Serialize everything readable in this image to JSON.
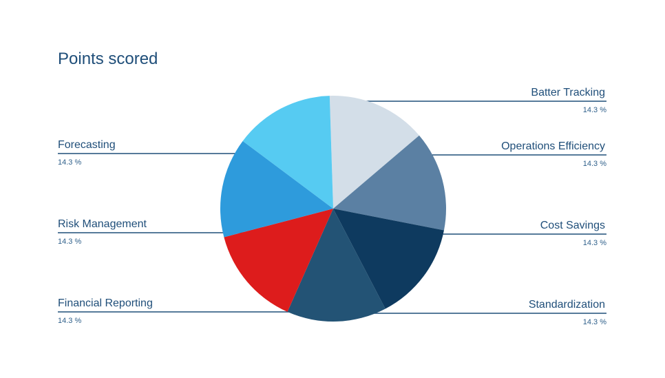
{
  "chart_data": {
    "type": "pie",
    "title": "Points scored",
    "slices": [
      {
        "label": "Batter Tracking",
        "value": 14.3,
        "display": "14.3 %",
        "color": "#d3dee8"
      },
      {
        "label": "Operations Efficiency",
        "value": 14.3,
        "display": "14.3 %",
        "color": "#5b80a3"
      },
      {
        "label": "Cost Savings",
        "value": 14.3,
        "display": "14.3 %",
        "color": "#0e3a5f"
      },
      {
        "label": "Standardization",
        "value": 14.3,
        "display": "14.3 %",
        "color": "#235375"
      },
      {
        "label": "Financial Reporting",
        "value": 14.3,
        "display": "14.3 %",
        "color": "#dd1c1c"
      },
      {
        "label": "Risk Management",
        "value": 14.3,
        "display": "14.3 %",
        "color": "#2e9bdc"
      },
      {
        "label": "Forecasting",
        "value": 14.3,
        "display": "14.3 %",
        "color": "#56cbf2"
      }
    ]
  }
}
